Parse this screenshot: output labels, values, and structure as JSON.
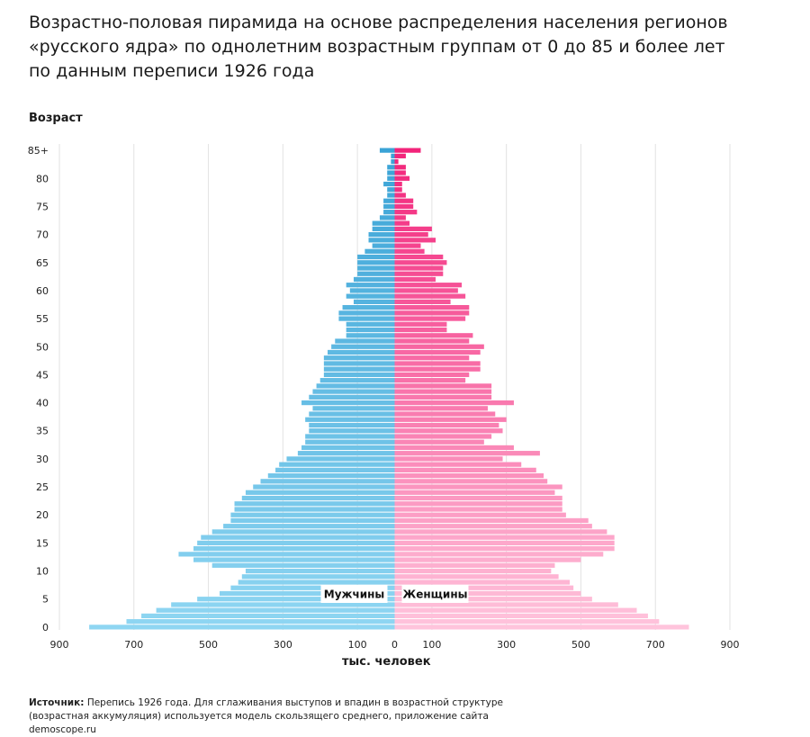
{
  "title_lines": [
    "Возрастно-половая пирамида на основе распределения населения регионов",
    "«русского ядра» по однолетним возрастным группам от 0 до 85 и более лет",
    "по данным переписи 1926 года"
  ],
  "source": {
    "label": "Источник:",
    "text": "Перепись 1926 года. Для сглаживания выступов и впадин в возрастной структуре (возрастная аккумуляция) используется модель скользящего среднего, приложение сайта demoscope.ru"
  },
  "colors": {
    "male_light": "#8fd6f2",
    "male_dark": "#3aa3d6",
    "female_light": "#ffc4dc",
    "female_dark": "#f2247a",
    "grid": "#e2e2e2",
    "label_bg": "#ffffff"
  },
  "chart_data": {
    "type": "bar",
    "orientation": "horizontal-pyramid",
    "ylabel": "Возраст",
    "xlabel": "тыс. человек",
    "xlim": [
      -900,
      900
    ],
    "x_ticks": [
      -900,
      -700,
      -500,
      -300,
      -100,
      0,
      100,
      300,
      500,
      700,
      900
    ],
    "x_tick_labels": [
      "900",
      "700",
      "500",
      "300",
      "100",
      "0",
      "100",
      "300",
      "500",
      "700",
      "900"
    ],
    "y_ticks": [
      0,
      5,
      10,
      15,
      20,
      25,
      30,
      35,
      40,
      45,
      50,
      55,
      60,
      65,
      70,
      75,
      80,
      85
    ],
    "y_tick_labels": [
      "0",
      "5",
      "10",
      "15",
      "20",
      "25",
      "30",
      "35",
      "40",
      "45",
      "50",
      "55",
      "60",
      "65",
      "70",
      "75",
      "80",
      "85+"
    ],
    "grid": true,
    "categories": [
      "0",
      "1",
      "2",
      "3",
      "4",
      "5",
      "6",
      "7",
      "8",
      "9",
      "10",
      "11",
      "12",
      "13",
      "14",
      "15",
      "16",
      "17",
      "18",
      "19",
      "20",
      "21",
      "22",
      "23",
      "24",
      "25",
      "26",
      "27",
      "28",
      "29",
      "30",
      "31",
      "32",
      "33",
      "34",
      "35",
      "36",
      "37",
      "38",
      "39",
      "40",
      "41",
      "42",
      "43",
      "44",
      "45",
      "46",
      "47",
      "48",
      "49",
      "50",
      "51",
      "52",
      "53",
      "54",
      "55",
      "56",
      "57",
      "58",
      "59",
      "60",
      "61",
      "62",
      "63",
      "64",
      "65",
      "66",
      "67",
      "68",
      "69",
      "70",
      "71",
      "72",
      "73",
      "74",
      "75",
      "76",
      "77",
      "78",
      "79",
      "80",
      "81",
      "82",
      "83",
      "84",
      "85+"
    ],
    "series": [
      {
        "name": "Мужчины",
        "values": [
          820,
          720,
          680,
          640,
          600,
          530,
          470,
          440,
          420,
          410,
          400,
          490,
          540,
          580,
          540,
          530,
          520,
          490,
          460,
          440,
          440,
          430,
          430,
          410,
          400,
          380,
          360,
          340,
          320,
          310,
          290,
          260,
          250,
          240,
          240,
          230,
          230,
          240,
          230,
          220,
          250,
          230,
          220,
          210,
          200,
          190,
          190,
          190,
          190,
          180,
          170,
          160,
          130,
          130,
          130,
          150,
          150,
          140,
          110,
          130,
          120,
          130,
          110,
          100,
          100,
          100,
          100,
          80,
          60,
          70,
          70,
          60,
          60,
          40,
          30,
          30,
          30,
          20,
          20,
          30,
          20,
          20,
          20,
          10,
          10,
          40
        ]
      },
      {
        "name": "Женщины",
        "values": [
          790,
          710,
          680,
          650,
          600,
          530,
          500,
          480,
          470,
          440,
          420,
          430,
          500,
          560,
          590,
          590,
          590,
          570,
          530,
          520,
          460,
          450,
          450,
          450,
          430,
          450,
          410,
          400,
          380,
          340,
          290,
          390,
          320,
          240,
          260,
          290,
          280,
          300,
          270,
          250,
          320,
          260,
          260,
          260,
          190,
          200,
          230,
          230,
          200,
          230,
          240,
          200,
          210,
          140,
          140,
          190,
          200,
          200,
          150,
          190,
          170,
          180,
          110,
          130,
          130,
          140,
          130,
          80,
          70,
          110,
          90,
          100,
          40,
          30,
          60,
          50,
          50,
          30,
          20,
          20,
          40,
          30,
          30,
          10,
          30,
          70
        ]
      }
    ]
  }
}
